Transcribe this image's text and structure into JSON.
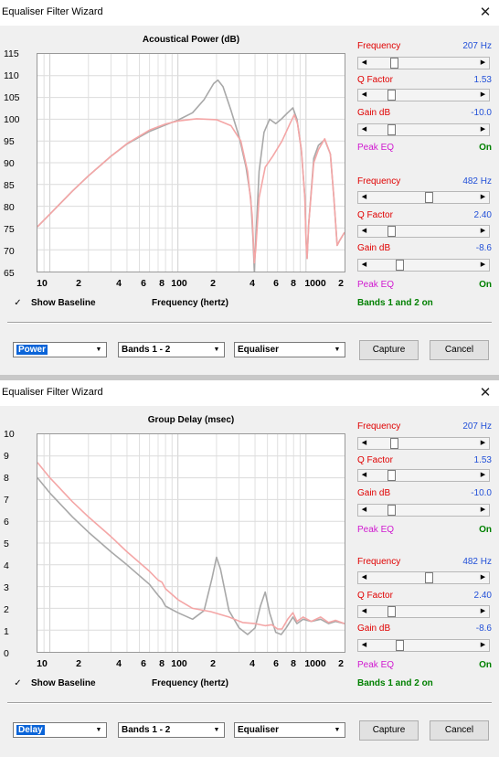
{
  "windows": [
    {
      "title": "Equaliser Filter Wizard",
      "close_glyph": "✕",
      "chart_data": {
        "type": "line",
        "title": "Acoustical Power (dB)",
        "xlabel": "Frequency (hertz)",
        "xscale": "log",
        "xlim": [
          8,
          2000
        ],
        "ylim": [
          65,
          115
        ],
        "grid": true,
        "yticks": [
          "115",
          "110",
          "105",
          "100",
          "95",
          "90",
          "85",
          "80",
          "75",
          "70",
          "65"
        ],
        "xticks": [
          {
            "f": 10,
            "label": "10"
          },
          {
            "f": 20,
            "label": "2"
          },
          {
            "f": 40,
            "label": "4"
          },
          {
            "f": 60,
            "label": "6"
          },
          {
            "f": 80,
            "label": "8"
          },
          {
            "f": 100,
            "label": "100"
          },
          {
            "f": 200,
            "label": "2"
          },
          {
            "f": 400,
            "label": "4"
          },
          {
            "f": 600,
            "label": "6"
          },
          {
            "f": 800,
            "label": "8"
          },
          {
            "f": 1000,
            "label": "1000"
          },
          {
            "f": 2000,
            "label": "2"
          }
        ],
        "series": [
          {
            "color": "#a8a8a8",
            "points": [
              [
                8,
                75.3
              ],
              [
                10,
                78.2
              ],
              [
                15,
                83.5
              ],
              [
                20,
                87
              ],
              [
                30,
                91.5
              ],
              [
                40,
                94.3
              ],
              [
                60,
                97.2
              ],
              [
                80,
                98.7
              ],
              [
                100,
                99.8
              ],
              [
                130,
                101.5
              ],
              [
                160,
                104.5
              ],
              [
                190,
                108.2
              ],
              [
                205,
                109
              ],
              [
                225,
                107.5
              ],
              [
                260,
                102
              ],
              [
                300,
                96
              ],
              [
                340,
                89
              ],
              [
                370,
                82
              ],
              [
                385,
                73
              ],
              [
                395,
                65
              ],
              [
                405,
                72
              ],
              [
                430,
                88
              ],
              [
                470,
                97
              ],
              [
                520,
                100
              ],
              [
                580,
                99
              ],
              [
                640,
                100
              ],
              [
                720,
                101.5
              ],
              [
                790,
                102.6
              ],
              [
                850,
                100
              ],
              [
                920,
                93
              ],
              [
                980,
                82
              ],
              [
                1000,
                73
              ],
              [
                1020,
                68
              ],
              [
                1050,
                76
              ],
              [
                1150,
                91
              ],
              [
                1250,
                94
              ],
              [
                1400,
                95.3
              ],
              [
                1550,
                92
              ],
              [
                1650,
                82
              ],
              [
                1750,
                71
              ],
              [
                1820,
                72
              ],
              [
                2000,
                74
              ]
            ]
          },
          {
            "color": "#f4a6a6",
            "points": [
              [
                8,
                75.3
              ],
              [
                10,
                78.2
              ],
              [
                15,
                83.5
              ],
              [
                20,
                87
              ],
              [
                30,
                91.5
              ],
              [
                40,
                94.4
              ],
              [
                60,
                97.5
              ],
              [
                80,
                98.9
              ],
              [
                100,
                99.6
              ],
              [
                140,
                100.1
              ],
              [
                200,
                99.9
              ],
              [
                260,
                98.5
              ],
              [
                310,
                95
              ],
              [
                350,
                88
              ],
              [
                380,
                78
              ],
              [
                395,
                67
              ],
              [
                405,
                70
              ],
              [
                430,
                82
              ],
              [
                480,
                89
              ],
              [
                550,
                91.5
              ],
              [
                650,
                95
              ],
              [
                750,
                99
              ],
              [
                810,
                101
              ],
              [
                860,
                99
              ],
              [
                920,
                93
              ],
              [
                980,
                82
              ],
              [
                1000,
                72
              ],
              [
                1020,
                68
              ],
              [
                1050,
                76
              ],
              [
                1150,
                90
              ],
              [
                1250,
                93
              ],
              [
                1400,
                95.5
              ],
              [
                1550,
                92
              ],
              [
                1650,
                82
              ],
              [
                1750,
                71
              ],
              [
                1820,
                72
              ],
              [
                2000,
                74
              ]
            ]
          }
        ]
      },
      "show_baseline_label": "Show Baseline",
      "show_baseline_checked": "✓",
      "bands": [
        {
          "freq_label": "Frequency",
          "freq_value": "207 Hz",
          "freq_pos": 0.22,
          "q_label": "Q Factor",
          "q_value": "1.53",
          "q_pos": 0.2,
          "gain_label": "Gain  dB",
          "gain_value": "-10.0",
          "gain_pos": 0.2,
          "type_label": "Peak EQ",
          "type_value": "On"
        },
        {
          "freq_label": "Frequency",
          "freq_value": "482 Hz",
          "freq_pos": 0.55,
          "q_label": "Q Factor",
          "q_value": "2.40",
          "q_pos": 0.2,
          "gain_label": "Gain  dB",
          "gain_value": "-8.6",
          "gain_pos": 0.27,
          "type_label": "Peak EQ",
          "type_value": "On"
        }
      ],
      "bands_summary": "Bands 1 and 2 on",
      "combos": {
        "view": "Power",
        "bands": "Bands 1 - 2",
        "mode": "Equaliser"
      },
      "buttons": {
        "capture": "Capture",
        "cancel": "Cancel"
      },
      "dropdown_glyph": "▼",
      "arrow_left": "◀",
      "arrow_right": "▶"
    },
    {
      "title": "Equaliser Filter Wizard",
      "close_glyph": "✕",
      "chart_data": {
        "type": "line",
        "title": "Group Delay (msec)",
        "xlabel": "Frequency (hertz)",
        "xscale": "log",
        "xlim": [
          8,
          2000
        ],
        "ylim": [
          0,
          10
        ],
        "grid": true,
        "yticks": [
          "10",
          "9",
          "8",
          "7",
          "6",
          "5",
          "4",
          "3",
          "2",
          "1",
          "0"
        ],
        "xticks": [
          {
            "f": 10,
            "label": "10"
          },
          {
            "f": 20,
            "label": "2"
          },
          {
            "f": 40,
            "label": "4"
          },
          {
            "f": 60,
            "label": "6"
          },
          {
            "f": 80,
            "label": "8"
          },
          {
            "f": 100,
            "label": "100"
          },
          {
            "f": 200,
            "label": "2"
          },
          {
            "f": 400,
            "label": "4"
          },
          {
            "f": 600,
            "label": "6"
          },
          {
            "f": 800,
            "label": "8"
          },
          {
            "f": 1000,
            "label": "1000"
          },
          {
            "f": 2000,
            "label": "2"
          }
        ],
        "series": [
          {
            "color": "#a8a8a8",
            "points": [
              [
                8,
                8
              ],
              [
                10,
                7.3
              ],
              [
                15,
                6.2
              ],
              [
                20,
                5.5
              ],
              [
                30,
                4.6
              ],
              [
                40,
                4
              ],
              [
                60,
                3.1
              ],
              [
                70,
                2.6
              ],
              [
                75,
                2.4
              ],
              [
                80,
                2.1
              ],
              [
                100,
                1.8
              ],
              [
                130,
                1.5
              ],
              [
                160,
                1.9
              ],
              [
                185,
                3.4
              ],
              [
                200,
                4.35
              ],
              [
                215,
                3.8
              ],
              [
                250,
                1.9
              ],
              [
                300,
                1.1
              ],
              [
                350,
                0.8
              ],
              [
                400,
                1.1
              ],
              [
                440,
                2.1
              ],
              [
                480,
                2.75
              ],
              [
                520,
                1.8
              ],
              [
                580,
                0.9
              ],
              [
                640,
                0.8
              ],
              [
                700,
                1.1
              ],
              [
                790,
                1.6
              ],
              [
                850,
                1.3
              ],
              [
                950,
                1.5
              ],
              [
                1100,
                1.4
              ],
              [
                1300,
                1.5
              ],
              [
                1500,
                1.3
              ],
              [
                1700,
                1.4
              ],
              [
                2000,
                1.3
              ]
            ]
          },
          {
            "color": "#f4a6a6",
            "points": [
              [
                8,
                8.7
              ],
              [
                10,
                8
              ],
              [
                15,
                6.9
              ],
              [
                20,
                6.2
              ],
              [
                30,
                5.3
              ],
              [
                40,
                4.6
              ],
              [
                60,
                3.7
              ],
              [
                70,
                3.3
              ],
              [
                75,
                3.2
              ],
              [
                80,
                2.9
              ],
              [
                100,
                2.4
              ],
              [
                130,
                2
              ],
              [
                180,
                1.85
              ],
              [
                250,
                1.6
              ],
              [
                320,
                1.35
              ],
              [
                400,
                1.3
              ],
              [
                480,
                1.2
              ],
              [
                540,
                1.25
              ],
              [
                600,
                1.05
              ],
              [
                650,
                1.05
              ],
              [
                720,
                1.5
              ],
              [
                790,
                1.8
              ],
              [
                850,
                1.4
              ],
              [
                950,
                1.6
              ],
              [
                1100,
                1.4
              ],
              [
                1300,
                1.6
              ],
              [
                1500,
                1.35
              ],
              [
                1700,
                1.45
              ],
              [
                2000,
                1.3
              ]
            ]
          }
        ]
      },
      "show_baseline_label": "Show Baseline",
      "show_baseline_checked": "✓",
      "bands": [
        {
          "freq_label": "Frequency",
          "freq_value": "207 Hz",
          "freq_pos": 0.22,
          "q_label": "Q Factor",
          "q_value": "1.53",
          "q_pos": 0.2,
          "gain_label": "Gain  dB",
          "gain_value": "-10.0",
          "gain_pos": 0.2,
          "type_label": "Peak EQ",
          "type_value": "On"
        },
        {
          "freq_label": "Frequency",
          "freq_value": "482 Hz",
          "freq_pos": 0.55,
          "q_label": "Q Factor",
          "q_value": "2.40",
          "q_pos": 0.2,
          "gain_label": "Gain  dB",
          "gain_value": "-8.6",
          "gain_pos": 0.27,
          "type_label": "Peak EQ",
          "type_value": "On"
        }
      ],
      "bands_summary": "Bands 1 and 2 on",
      "combos": {
        "view": "Delay",
        "bands": "Bands 1 - 2",
        "mode": "Equaliser"
      },
      "buttons": {
        "capture": "Capture",
        "cancel": "Cancel"
      },
      "dropdown_glyph": "▼",
      "arrow_left": "◀",
      "arrow_right": "▶"
    }
  ]
}
